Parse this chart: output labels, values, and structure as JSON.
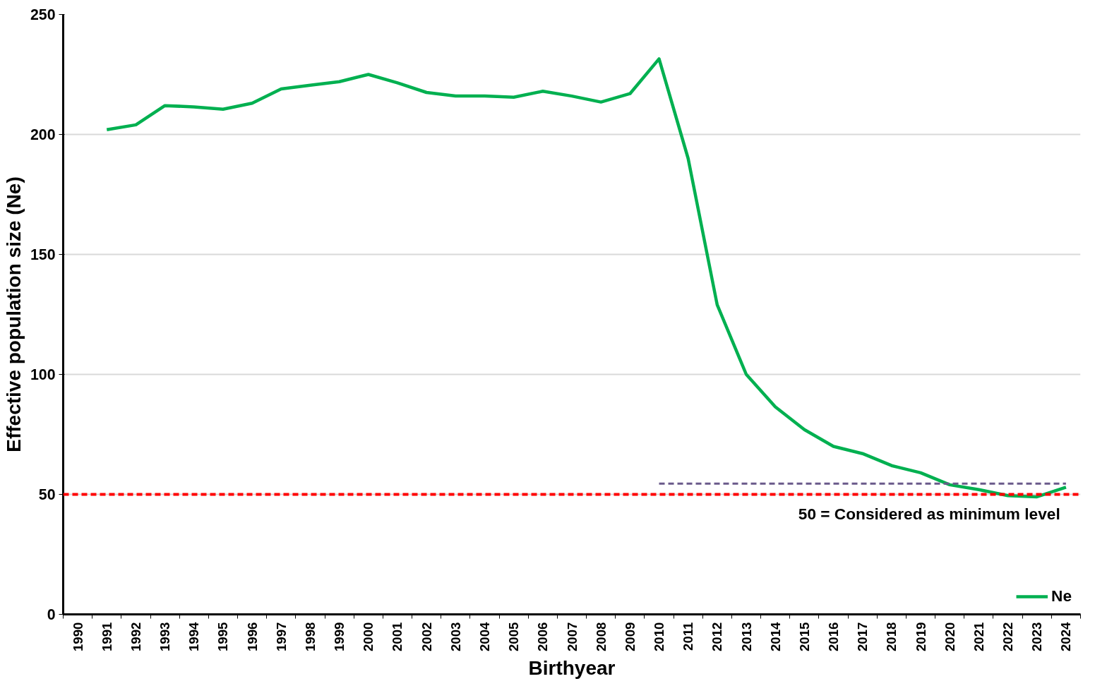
{
  "chart_data": {
    "type": "line",
    "xlabel": "Birthyear",
    "ylabel": "Effective population size (Ne)",
    "categories": [
      "1990",
      "1991",
      "1992",
      "1993",
      "1994",
      "1995",
      "1996",
      "1997",
      "1998",
      "1999",
      "2000",
      "2001",
      "2002",
      "2003",
      "2004",
      "2005",
      "2006",
      "2007",
      "2008",
      "2009",
      "2010",
      "2011",
      "2012",
      "2013",
      "2014",
      "2015",
      "2016",
      "2017",
      "2018",
      "2019",
      "2020",
      "2021",
      "2022",
      "2023",
      "2024"
    ],
    "series": [
      {
        "name": "Ne",
        "color": "#00b050",
        "values": [
          null,
          202,
          204,
          212,
          211.5,
          210.5,
          213,
          219,
          220.5,
          222,
          225,
          221.5,
          217.5,
          216,
          216,
          215.5,
          218,
          216,
          213.5,
          217,
          231.5,
          190,
          129,
          100,
          86.5,
          77,
          70,
          67,
          62,
          59,
          54,
          52,
          49.5,
          49,
          53
        ]
      },
      {
        "color": "#6a5a8a",
        "line_style": "dashed",
        "values": [
          null,
          null,
          null,
          null,
          null,
          null,
          null,
          null,
          null,
          null,
          null,
          null,
          null,
          null,
          null,
          null,
          null,
          null,
          null,
          null,
          54.5,
          54.5,
          54.5,
          54.5,
          54.5,
          54.5,
          54.5,
          54.5,
          54.5,
          54.5,
          54.5,
          54.5,
          54.5,
          54.5,
          54.5
        ]
      }
    ],
    "ylim": [
      0,
      250
    ],
    "yticks": [
      0,
      50,
      100,
      150,
      200,
      250
    ],
    "grid": "y",
    "legend": "bottom right",
    "ref_lines": [
      {
        "axis": "y",
        "value": 50,
        "label": "50 = Considered as minimum level",
        "color": "#ff0000",
        "line_style": "dashed"
      }
    ]
  }
}
